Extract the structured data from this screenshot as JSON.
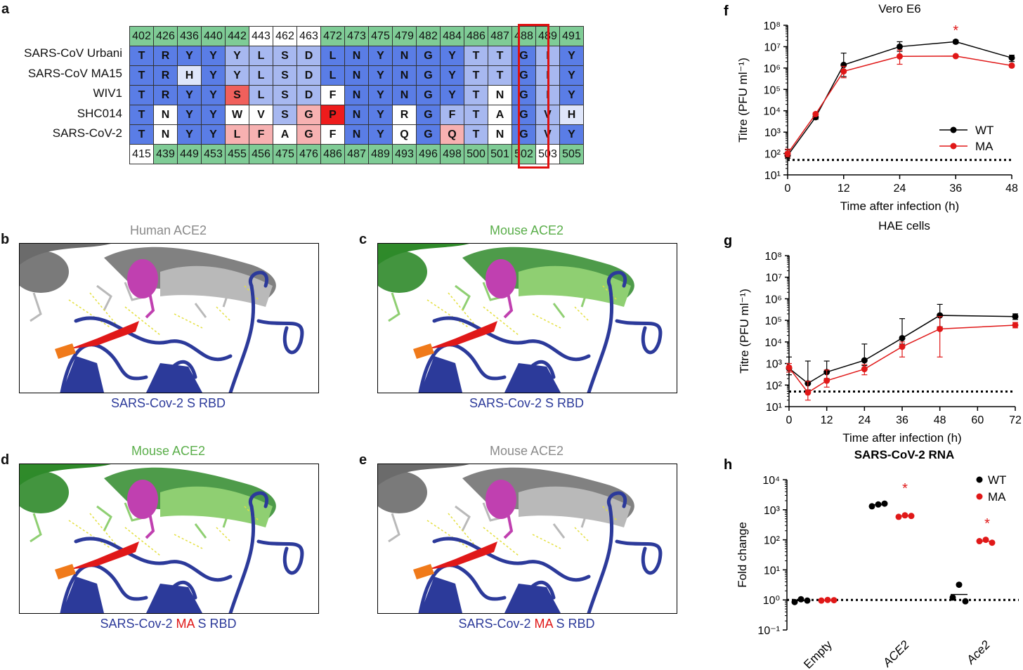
{
  "panel_a": {
    "letter": "a",
    "top_numbers": [
      {
        "n": "402",
        "bg": "green"
      },
      {
        "n": "426",
        "bg": "green"
      },
      {
        "n": "436",
        "bg": "green"
      },
      {
        "n": "440",
        "bg": "green"
      },
      {
        "n": "442",
        "bg": "green"
      },
      {
        "n": "443",
        "bg": "white"
      },
      {
        "n": "462",
        "bg": "white"
      },
      {
        "n": "463",
        "bg": "white"
      },
      {
        "n": "472",
        "bg": "green"
      },
      {
        "n": "473",
        "bg": "green"
      },
      {
        "n": "475",
        "bg": "green"
      },
      {
        "n": "479",
        "bg": "green"
      },
      {
        "n": "482",
        "bg": "green"
      },
      {
        "n": "484",
        "bg": "green"
      },
      {
        "n": "486",
        "bg": "green"
      },
      {
        "n": "487",
        "bg": "green"
      },
      {
        "n": "488",
        "bg": "green"
      },
      {
        "n": "489",
        "bg": "green"
      },
      {
        "n": "491",
        "bg": "green"
      }
    ],
    "rows": [
      {
        "label": "SARS-CoV Urbani",
        "cells": [
          [
            "T",
            "blue"
          ],
          [
            "R",
            "blue"
          ],
          [
            "Y",
            "blue"
          ],
          [
            "Y",
            "blue"
          ],
          [
            "Y",
            "lblue"
          ],
          [
            "L",
            "lblue"
          ],
          [
            "S",
            "lblue"
          ],
          [
            "D",
            "lblue"
          ],
          [
            "L",
            "blue"
          ],
          [
            "N",
            "blue"
          ],
          [
            "Y",
            "blue"
          ],
          [
            "N",
            "blue"
          ],
          [
            "G",
            "blue"
          ],
          [
            "Y",
            "blue"
          ],
          [
            "T",
            "lblue"
          ],
          [
            "T",
            "lblue"
          ],
          [
            "G",
            "blue"
          ],
          [
            "I",
            "lblue"
          ],
          [
            "Y",
            "blue"
          ]
        ]
      },
      {
        "label": "SARS-CoV MA15",
        "cells": [
          [
            "T",
            "blue"
          ],
          [
            "R",
            "blue"
          ],
          [
            "H",
            "pale"
          ],
          [
            "Y",
            "blue"
          ],
          [
            "Y",
            "lblue"
          ],
          [
            "L",
            "lblue"
          ],
          [
            "S",
            "lblue"
          ],
          [
            "D",
            "lblue"
          ],
          [
            "L",
            "blue"
          ],
          [
            "N",
            "blue"
          ],
          [
            "Y",
            "blue"
          ],
          [
            "N",
            "blue"
          ],
          [
            "G",
            "blue"
          ],
          [
            "Y",
            "blue"
          ],
          [
            "T",
            "lblue"
          ],
          [
            "T",
            "lblue"
          ],
          [
            "G",
            "blue"
          ],
          [
            "I",
            "lblue"
          ],
          [
            "Y",
            "blue"
          ]
        ]
      },
      {
        "label": "WIV1",
        "cells": [
          [
            "T",
            "blue"
          ],
          [
            "R",
            "blue"
          ],
          [
            "Y",
            "blue"
          ],
          [
            "Y",
            "blue"
          ],
          [
            "S",
            "red"
          ],
          [
            "L",
            "lblue"
          ],
          [
            "S",
            "lblue"
          ],
          [
            "D",
            "lblue"
          ],
          [
            "F",
            "white"
          ],
          [
            "N",
            "blue"
          ],
          [
            "Y",
            "blue"
          ],
          [
            "N",
            "blue"
          ],
          [
            "G",
            "blue"
          ],
          [
            "Y",
            "blue"
          ],
          [
            "T",
            "lblue"
          ],
          [
            "N",
            "white"
          ],
          [
            "G",
            "blue"
          ],
          [
            "I",
            "lblue"
          ],
          [
            "Y",
            "blue"
          ]
        ]
      },
      {
        "label": "SHC014",
        "cells": [
          [
            "T",
            "blue"
          ],
          [
            "N",
            "white"
          ],
          [
            "Y",
            "blue"
          ],
          [
            "Y",
            "blue"
          ],
          [
            "W",
            "white"
          ],
          [
            "V",
            "white"
          ],
          [
            "S",
            "lblue"
          ],
          [
            "G",
            "pink"
          ],
          [
            "P",
            "red2"
          ],
          [
            "N",
            "blue"
          ],
          [
            "Y",
            "blue"
          ],
          [
            "R",
            "white"
          ],
          [
            "G",
            "blue"
          ],
          [
            "F",
            "lblue"
          ],
          [
            "T",
            "lblue"
          ],
          [
            "A",
            "white"
          ],
          [
            "G",
            "blue"
          ],
          [
            "V",
            "lblue"
          ],
          [
            "H",
            "pale"
          ]
        ]
      },
      {
        "label": "SARS-CoV-2",
        "cells": [
          [
            "T",
            "blue"
          ],
          [
            "N",
            "white"
          ],
          [
            "Y",
            "blue"
          ],
          [
            "Y",
            "blue"
          ],
          [
            "L",
            "pink"
          ],
          [
            "F",
            "pink"
          ],
          [
            "A",
            "white"
          ],
          [
            "G",
            "pink"
          ],
          [
            "F",
            "white"
          ],
          [
            "N",
            "blue"
          ],
          [
            "Y",
            "blue"
          ],
          [
            "Q",
            "white"
          ],
          [
            "G",
            "blue"
          ],
          [
            "Q",
            "pink"
          ],
          [
            "T",
            "lblue"
          ],
          [
            "N",
            "white"
          ],
          [
            "G",
            "blue"
          ],
          [
            "V",
            "lblue"
          ],
          [
            "Y",
            "blue"
          ]
        ]
      }
    ],
    "bottom_numbers": [
      {
        "n": "415",
        "bg": "white"
      },
      {
        "n": "439",
        "bg": "green"
      },
      {
        "n": "449",
        "bg": "green"
      },
      {
        "n": "453",
        "bg": "green"
      },
      {
        "n": "455",
        "bg": "green"
      },
      {
        "n": "456",
        "bg": "green"
      },
      {
        "n": "475",
        "bg": "green"
      },
      {
        "n": "476",
        "bg": "green"
      },
      {
        "n": "486",
        "bg": "green"
      },
      {
        "n": "487",
        "bg": "green"
      },
      {
        "n": "489",
        "bg": "green"
      },
      {
        "n": "493",
        "bg": "green"
      },
      {
        "n": "496",
        "bg": "green"
      },
      {
        "n": "498",
        "bg": "green"
      },
      {
        "n": "500",
        "bg": "green"
      },
      {
        "n": "501",
        "bg": "green"
      },
      {
        "n": "502",
        "bg": "green"
      },
      {
        "n": "503",
        "bg": "white"
      },
      {
        "n": "505",
        "bg": "green"
      }
    ],
    "colors": {
      "green": "#7fcc96",
      "white": "#ffffff",
      "blue": "#5a7de6",
      "lblue": "#a7b8f0",
      "pale": "#dfe6fa",
      "red": "#f0605c",
      "red2": "#ee1c1c",
      "pink": "#f7b1b1"
    }
  },
  "structures": {
    "b": {
      "letter": "b",
      "title": "Human ACE2",
      "title_color": "#8a8a8a",
      "caption_parts": [
        {
          "t": "SARS-Cov-2 S RBD",
          "c": "#2c3a9a"
        }
      ],
      "ace2": "grey"
    },
    "c": {
      "letter": "c",
      "title": "Mouse ACE2",
      "title_color": "#5aae4a",
      "caption_parts": [
        {
          "t": "SARS-Cov-2 S RBD",
          "c": "#2c3a9a"
        }
      ],
      "ace2": "green"
    },
    "d": {
      "letter": "d",
      "title": "Mouse ACE2",
      "title_color": "#5aae4a",
      "caption_parts": [
        {
          "t": "SARS-Cov-2 ",
          "c": "#2c3a9a"
        },
        {
          "t": "MA",
          "c": "#e01818"
        },
        {
          "t": " S RBD",
          "c": "#2c3a9a"
        }
      ],
      "ace2": "green"
    },
    "e": {
      "letter": "e",
      "title": "Mouse ACE2",
      "title_color": "#8a8a8a",
      "caption_parts": [
        {
          "t": "SARS-Cov-2 ",
          "c": "#2c3a9a"
        },
        {
          "t": "MA",
          "c": "#e01818"
        },
        {
          "t": " S RBD",
          "c": "#2c3a9a"
        }
      ],
      "ace2": "grey"
    }
  },
  "chart_data": [
    {
      "panel": "f",
      "type": "line",
      "title": "Vero E6",
      "xlabel": "Time after infection (h)",
      "ylabel": "Titre (PFU ml⁻¹)",
      "x": [
        0,
        6,
        12,
        24,
        36,
        48
      ],
      "xticks": [
        0,
        12,
        24,
        36,
        48
      ],
      "xlim": [
        0,
        48
      ],
      "ylog": true,
      "ylim_exp": [
        1,
        8
      ],
      "detection_limit": 50,
      "series": [
        {
          "name": "WT",
          "color": "#000000",
          "values": [
            80,
            5000,
            1400000,
            10000000,
            17000000,
            3000000
          ],
          "err_hi": [
            150,
            6000,
            5000000,
            17000000,
            20000000,
            4000000
          ],
          "err_lo": [
            60,
            4000,
            400000,
            6000000,
            14000000,
            2000000
          ]
        },
        {
          "name": "MA",
          "color": "#e01818",
          "values": [
            100,
            7000,
            700000,
            3500000,
            3600000,
            1300000
          ],
          "err_hi": [
            160,
            8000,
            1200000,
            7000000,
            4000000,
            1500000
          ],
          "err_lo": [
            70,
            6000,
            350000,
            1500000,
            3200000,
            1100000
          ]
        }
      ],
      "annotations": [
        {
          "text": "*",
          "x": 36,
          "color": "#e01818"
        }
      ],
      "legend": "right"
    },
    {
      "panel": "g",
      "type": "line",
      "title": "HAE cells",
      "xlabel": "Time after infection (h)",
      "ylabel": "Titre (PFU ml⁻¹)",
      "x": [
        0,
        6,
        12,
        24,
        36,
        48,
        72
      ],
      "xticks": [
        0,
        12,
        24,
        36,
        48,
        60,
        72
      ],
      "xlim": [
        0,
        72
      ],
      "ylog": true,
      "ylim_exp": [
        1,
        8
      ],
      "detection_limit": 50,
      "series": [
        {
          "name": "WT",
          "color": "#000000",
          "values": [
            600,
            120,
            400,
            1400,
            15000,
            170000,
            150000
          ],
          "err_hi": [
            2000,
            1300,
            1300,
            8000,
            120000,
            550000,
            200000
          ],
          "err_lo": [
            300,
            60,
            200,
            800,
            8000,
            50000,
            110000
          ]
        },
        {
          "name": "MA",
          "color": "#e01818",
          "values": [
            650,
            45,
            160,
            550,
            6000,
            40000,
            60000
          ],
          "err_hi": [
            1000,
            150,
            500,
            900,
            10000,
            150000,
            80000
          ],
          "err_lo": [
            400,
            20,
            80,
            300,
            2000,
            2000,
            45000
          ]
        }
      ]
    },
    {
      "panel": "h",
      "type": "scatter",
      "title": "SARS-CoV-2 RNA",
      "xlabel": "",
      "ylabel": "Fold change",
      "categories": [
        "Empty",
        "ACE2",
        "Ace2"
      ],
      "ylog": true,
      "ylim_exp": [
        -1,
        4
      ],
      "baseline": 1,
      "series": [
        {
          "name": "WT",
          "color": "#000000",
          "points": [
            [
              0.85,
              1.05,
              0.95
            ],
            [
              1300,
              1500,
              1600
            ],
            [
              1.2,
              3.2,
              0.9
            ]
          ]
        },
        {
          "name": "MA",
          "color": "#e01818",
          "points": [
            [
              0.95,
              1.0,
              0.98
            ],
            [
              580,
              650,
              620
            ],
            [
              90,
              100,
              80
            ]
          ]
        }
      ],
      "annotations": [
        {
          "text": "*",
          "category": 1,
          "color": "#e01818"
        },
        {
          "text": "*",
          "category": 2,
          "color": "#e01818"
        }
      ],
      "legend": "top-right"
    }
  ]
}
